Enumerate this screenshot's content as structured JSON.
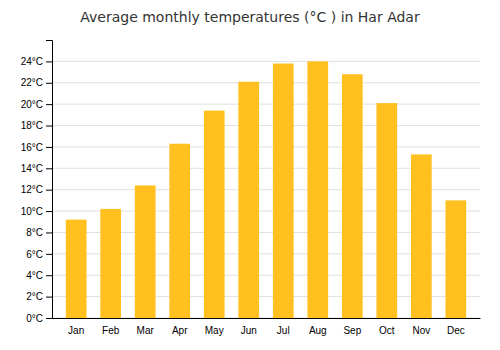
{
  "chart_data": {
    "type": "bar",
    "title": "Average monthly temperatures (°C ) in Har Adar",
    "categories": [
      "Jan",
      "Feb",
      "Mar",
      "Apr",
      "May",
      "Jun",
      "Jul",
      "Aug",
      "Sep",
      "Oct",
      "Nov",
      "Dec"
    ],
    "values": [
      9.2,
      10.2,
      12.4,
      16.3,
      19.4,
      22.1,
      23.8,
      24.0,
      22.8,
      20.1,
      15.3,
      11.0
    ],
    "color": "#FFC020",
    "ylim": [
      0,
      26
    ],
    "yticks": [
      {
        "value": 0,
        "label": "0°C"
      },
      {
        "value": 2,
        "label": "2°C"
      },
      {
        "value": 4,
        "label": "4°C"
      },
      {
        "value": 6,
        "label": "6°C"
      },
      {
        "value": 8,
        "label": "8°C"
      },
      {
        "value": 10,
        "label": "10°C"
      },
      {
        "value": 12,
        "label": "12°C"
      },
      {
        "value": 14,
        "label": "14°C"
      },
      {
        "value": 16,
        "label": "16°C"
      },
      {
        "value": 18,
        "label": "18°C"
      },
      {
        "value": 20,
        "label": "20°C"
      },
      {
        "value": 22,
        "label": "22°C"
      },
      {
        "value": 24,
        "label": "24°C"
      }
    ],
    "grid": true
  }
}
